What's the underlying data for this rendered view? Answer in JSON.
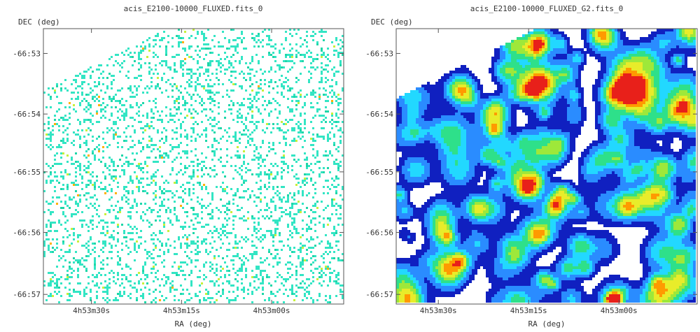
{
  "chart_data": [
    {
      "type": "heatmap",
      "title": "acis_E2100-10000_FLUXED.fits_0",
      "xlabel": "RA (deg)",
      "ylabel": "DEC (deg)",
      "xticks": [
        "4h53m30s",
        "4h53m15s",
        "4h53m00s"
      ],
      "yticks": [
        "-66:53",
        "-66:54",
        "-66:55",
        "-66:56",
        "-66:57"
      ],
      "style": "sparse",
      "colormap": [
        "#ffffff",
        "#33e5c4",
        "#1fd6a8",
        "#c7f03a",
        "#ffb000",
        "#000000"
      ],
      "grid": false
    },
    {
      "type": "heatmap",
      "title": "acis_E2100-10000_FLUXED_G2.fits_0",
      "xlabel": "RA (deg)",
      "ylabel": "DEC (deg)",
      "xticks": [
        "4h53m30s",
        "4h53m15s",
        "4h53m00s"
      ],
      "yticks": [
        "-66:53",
        "-66:54",
        "-66:55",
        "-66:56",
        "-66:57"
      ],
      "style": "smoothed",
      "colormap": [
        "#ffffff",
        "#1020c0",
        "#2a8cff",
        "#22d8ff",
        "#2ee08a",
        "#9ee83a",
        "#e8ec2a",
        "#ff9a00",
        "#e8201a"
      ],
      "grid": false
    }
  ]
}
